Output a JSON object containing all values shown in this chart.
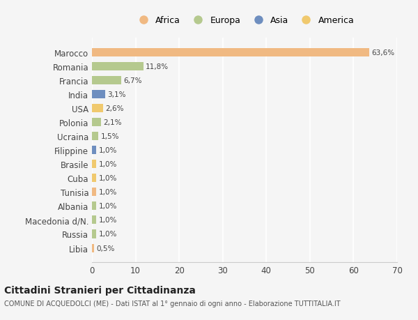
{
  "countries": [
    "Marocco",
    "Romania",
    "Francia",
    "India",
    "USA",
    "Polonia",
    "Ucraina",
    "Filippine",
    "Brasile",
    "Cuba",
    "Tunisia",
    "Albania",
    "Macedonia d/N.",
    "Russia",
    "Libia"
  ],
  "values": [
    63.6,
    11.8,
    6.7,
    3.1,
    2.6,
    2.1,
    1.5,
    1.0,
    1.0,
    1.0,
    1.0,
    1.0,
    1.0,
    1.0,
    0.5
  ],
  "labels": [
    "63,6%",
    "11,8%",
    "6,7%",
    "3,1%",
    "2,6%",
    "2,1%",
    "1,5%",
    "1,0%",
    "1,0%",
    "1,0%",
    "1,0%",
    "1,0%",
    "1,0%",
    "1,0%",
    "0,5%"
  ],
  "continents": [
    "Africa",
    "Europa",
    "Europa",
    "Asia",
    "America",
    "Europa",
    "Europa",
    "Asia",
    "America",
    "America",
    "Africa",
    "Europa",
    "Europa",
    "Europa",
    "Africa"
  ],
  "continent_colors": {
    "Africa": "#F0B982",
    "Europa": "#B5C98E",
    "Asia": "#6E8EBF",
    "America": "#F0C96E"
  },
  "legend_items": [
    {
      "label": "Africa",
      "color": "#F0B982"
    },
    {
      "label": "Europa",
      "color": "#B5C98E"
    },
    {
      "label": "Asia",
      "color": "#6E8EBF"
    },
    {
      "label": "America",
      "color": "#F0C96E"
    }
  ],
  "xlim": [
    0,
    70
  ],
  "xticks": [
    0,
    10,
    20,
    30,
    40,
    50,
    60,
    70
  ],
  "title": "Cittadini Stranieri per Cittadinanza",
  "subtitle": "COMUNE DI ACQUEDOLCI (ME) - Dati ISTAT al 1° gennaio di ogni anno - Elaborazione TUTTITALIA.IT",
  "background_color": "#f5f5f5",
  "grid_color": "#ffffff",
  "bar_height": 0.6
}
